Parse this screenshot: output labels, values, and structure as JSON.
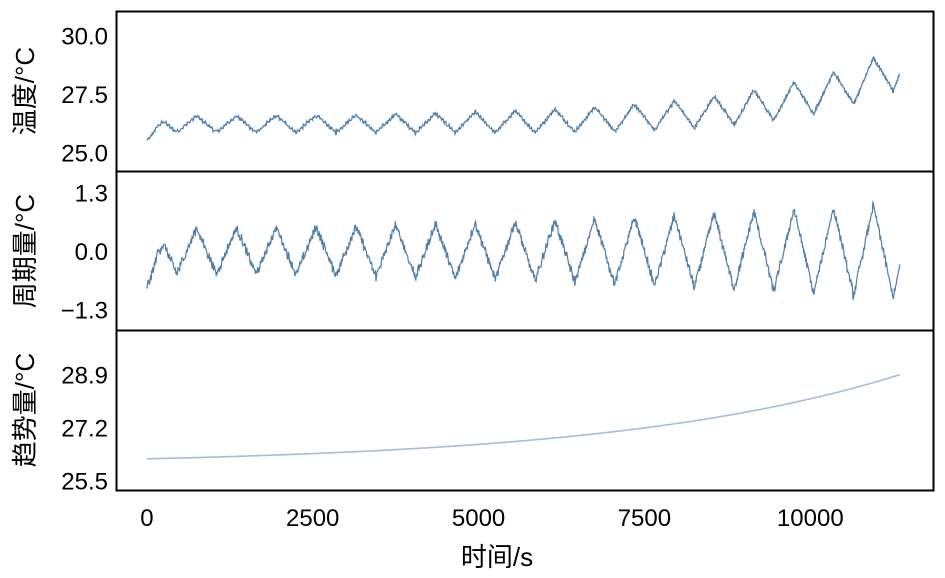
{
  "chart_data": {
    "type": "line",
    "xlabel": "时间/s",
    "x_ticks": [
      0,
      2500,
      5000,
      7500,
      10000
    ],
    "x_tick_labels": [
      "0",
      "2500",
      "5000",
      "7500",
      "10000"
    ],
    "xlim": [
      -450,
      11850
    ],
    "series_color": "#4f7ea8",
    "trend_color": "#a9bcd6",
    "panels": [
      {
        "name": "temperature",
        "ylabel": "温度/°C",
        "ylim": [
          24.2,
          31.0
        ],
        "y_ticks": [
          25.0,
          27.5,
          30.0
        ],
        "y_tick_labels": [
          "25.0",
          "27.5",
          "30.0"
        ],
        "series": {
          "name": "温度",
          "x_start": 0,
          "x_end": 11350,
          "period": 600,
          "baseline_start": 25.5,
          "rise_seconds": 270,
          "rise_amount": 1.45,
          "trend": {
            "start": 26.2,
            "curvature": 6.0,
            "gain": 2.45
          },
          "amplitude": {
            "start": 0.35,
            "end": 0.92,
            "power": 2.2
          },
          "phase_shift": 0.25,
          "noise": 0.05
        }
      },
      {
        "name": "periodic",
        "ylabel": "周期量/°C",
        "ylim": [
          -1.75,
          1.75
        ],
        "y_ticks": [
          -1.3,
          0.0,
          1.3
        ],
        "y_tick_labels": [
          "−1.3",
          "0.0",
          "1.3"
        ],
        "series": {
          "name": "周期量",
          "x_start": 0,
          "x_end": 11350,
          "period": 600,
          "baseline_start": -0.8,
          "rise_seconds": 270,
          "rise_amount": 1.45,
          "trend": {
            "start": 0.0,
            "curvature": 6.0,
            "gain": 0.0
          },
          "amplitude": {
            "start": 0.5,
            "end": 1.05,
            "power": 1.8
          },
          "phase_shift": 0.25,
          "noise": 0.08
        }
      },
      {
        "name": "trend",
        "ylabel": "趋势量/°C",
        "ylim": [
          25.2,
          30.3
        ],
        "y_ticks": [
          25.5,
          27.2,
          28.9
        ],
        "y_tick_labels": [
          "25.5",
          "27.2",
          "28.9"
        ],
        "series": {
          "name": "趋势量",
          "x_start": 0,
          "x_end": 11350,
          "start": 26.2,
          "end": 28.9,
          "curvature": 2.6
        }
      }
    ]
  }
}
